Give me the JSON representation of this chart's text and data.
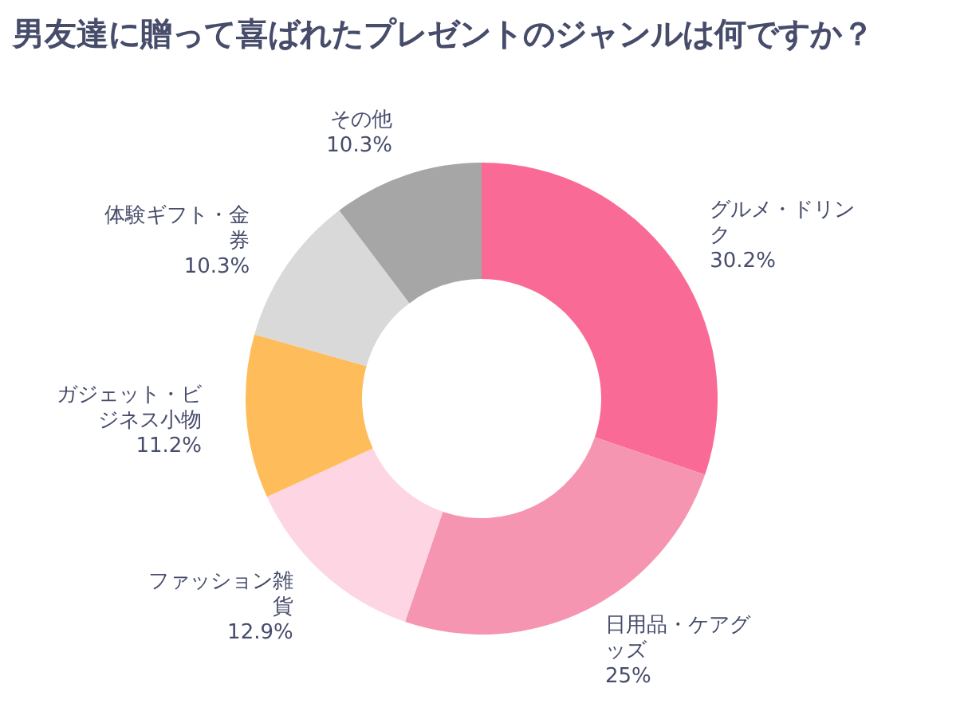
{
  "chart_data": {
    "type": "donut",
    "title": "男友達に贈って喜ばれたプレゼントのジャンルは何ですか？",
    "categories": [
      "グルメ・ドリンク",
      "日用品・ケアグッズ",
      "ファッション雑貨",
      "ガジェット・ビジネス小物",
      "体験ギフト・金券",
      "その他"
    ],
    "values": [
      30.2,
      25,
      12.9,
      11.2,
      10.3,
      10.3
    ],
    "value_labels": [
      "30.2%",
      "25%",
      "12.9%",
      "11.2%",
      "10.3%",
      "10.3%"
    ],
    "colors": [
      "#fa6a96",
      "#f695b2",
      "#fdd5e3",
      "#ffbc5a",
      "#d9d9d9",
      "#a6a6a6"
    ],
    "legend": false
  }
}
